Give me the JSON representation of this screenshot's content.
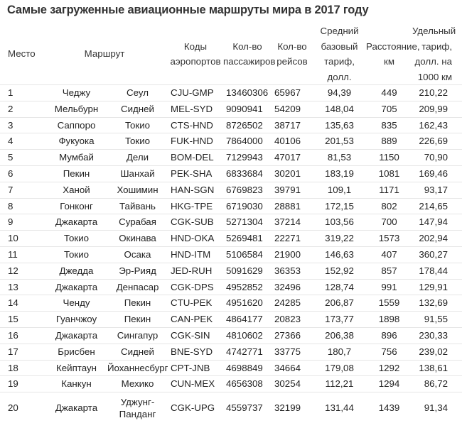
{
  "title": "Самые загруженные авиационные маршруты мира в 2017 году",
  "headers": {
    "place": "Место",
    "route": "Маршрут",
    "codes": "Коды аэропортов",
    "passengers": "Кол-во пассажиров",
    "flights": "Кол-во рейсов",
    "tariff": "Средний базовый тариф, долл.",
    "distance": "Расстояние, км",
    "unit_tariff": "Удельный тариф, долл. на 1000 км"
  },
  "rows": [
    {
      "place": "1",
      "from": "Чеджу",
      "to": "Сеул",
      "codes": "CJU-GMP",
      "passengers": "13460306",
      "flights": "65967",
      "tariff": "94,39",
      "distance": "449",
      "unit": "210,22"
    },
    {
      "place": "2",
      "from": "Мельбурн",
      "to": "Сидней",
      "codes": "MEL-SYD",
      "passengers": "9090941",
      "flights": "54209",
      "tariff": "148,04",
      "distance": "705",
      "unit": "209,99"
    },
    {
      "place": "3",
      "from": "Саппоро",
      "to": "Токио",
      "codes": "CTS-HND",
      "passengers": "8726502",
      "flights": "38717",
      "tariff": "135,63",
      "distance": "835",
      "unit": "162,43"
    },
    {
      "place": "4",
      "from": "Фукуока",
      "to": "Токио",
      "codes": "FUK-HND",
      "passengers": "7864000",
      "flights": "40106",
      "tariff": "201,53",
      "distance": "889",
      "unit": "226,69"
    },
    {
      "place": "5",
      "from": "Мумбай",
      "to": "Дели",
      "codes": "BOM-DEL",
      "passengers": "7129943",
      "flights": "47017",
      "tariff": "81,53",
      "distance": "1150",
      "unit": "70,90"
    },
    {
      "place": "6",
      "from": "Пекин",
      "to": "Шанхай",
      "codes": "PEK-SHA",
      "passengers": "6833684",
      "flights": "30201",
      "tariff": "183,19",
      "distance": "1081",
      "unit": "169,46"
    },
    {
      "place": "7",
      "from": "Ханой",
      "to": "Хошимин",
      "codes": "HAN-SGN",
      "passengers": "6769823",
      "flights": "39791",
      "tariff": "109,1",
      "distance": "1171",
      "unit": "93,17"
    },
    {
      "place": "8",
      "from": "Гонконг",
      "to": "Тайвань",
      "codes": "HKG-TPE",
      "passengers": "6719030",
      "flights": "28881",
      "tariff": "172,15",
      "distance": "802",
      "unit": "214,65"
    },
    {
      "place": "9",
      "from": "Джакарта",
      "to": "Сурабая",
      "codes": "CGK-SUB",
      "passengers": "5271304",
      "flights": "37214",
      "tariff": "103,56",
      "distance": "700",
      "unit": "147,94"
    },
    {
      "place": "10",
      "from": "Токио",
      "to": "Окинава",
      "codes": "HND-OKA",
      "passengers": "5269481",
      "flights": "22271",
      "tariff": "319,22",
      "distance": "1573",
      "unit": "202,94"
    },
    {
      "place": "11",
      "from": "Токио",
      "to": "Осака",
      "codes": "HND-ITM",
      "passengers": "5106584",
      "flights": "21900",
      "tariff": "146,63",
      "distance": "407",
      "unit": "360,27"
    },
    {
      "place": "12",
      "from": "Джедда",
      "to": "Эр-Рияд",
      "codes": "JED-RUH",
      "passengers": "5091629",
      "flights": "36353",
      "tariff": "152,92",
      "distance": "857",
      "unit": "178,44"
    },
    {
      "place": "13",
      "from": "Джакарта",
      "to": "Денпасар",
      "codes": "CGK-DPS",
      "passengers": "4952852",
      "flights": "32496",
      "tariff": "128,74",
      "distance": "991",
      "unit": "129,91"
    },
    {
      "place": "14",
      "from": "Ченду",
      "to": "Пекин",
      "codes": "CTU-PEK",
      "passengers": "4951620",
      "flights": "24285",
      "tariff": "206,87",
      "distance": "1559",
      "unit": "132,69"
    },
    {
      "place": "15",
      "from": "Гуанчжоу",
      "to": "Пекин",
      "codes": "CAN-PEK",
      "passengers": "4864177",
      "flights": "20823",
      "tariff": "173,77",
      "distance": "1898",
      "unit": "91,55"
    },
    {
      "place": "16",
      "from": "Джакарта",
      "to": "Сингапур",
      "codes": "CGK-SIN",
      "passengers": "4810602",
      "flights": "27366",
      "tariff": "206,38",
      "distance": "896",
      "unit": "230,33"
    },
    {
      "place": "17",
      "from": "Брисбен",
      "to": "Сидней",
      "codes": "BNE-SYD",
      "passengers": "4742771",
      "flights": "33775",
      "tariff": "180,7",
      "distance": "756",
      "unit": "239,02"
    },
    {
      "place": "18",
      "from": "Кейптаун",
      "to": "Йоханнесбург",
      "codes": "CPT-JNB",
      "passengers": "4698849",
      "flights": "34664",
      "tariff": "179,08",
      "distance": "1292",
      "unit": "138,61"
    },
    {
      "place": "19",
      "from": "Канкун",
      "to": "Мехико",
      "codes": "CUN-MEX",
      "passengers": "4656308",
      "flights": "30254",
      "tariff": "112,21",
      "distance": "1294",
      "unit": "86,72"
    },
    {
      "place": "20",
      "from": "Джакарта",
      "to": "Уджунг-Панданг",
      "codes": "CGK-UPG",
      "passengers": "4559737",
      "flights": "32199",
      "tariff": "131,44",
      "distance": "1439",
      "unit": "91,34"
    }
  ]
}
